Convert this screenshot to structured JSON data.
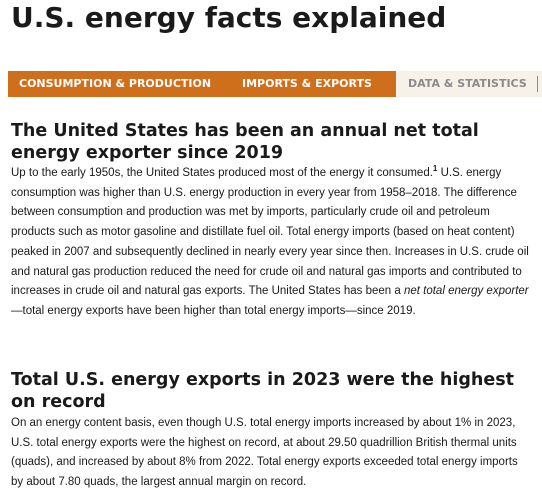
{
  "page": {
    "title": "U.S. energy facts explained"
  },
  "tabs": [
    {
      "label": "CONSUMPTION & PRODUCTION"
    },
    {
      "label": "IMPORTS & EXPORTS"
    },
    {
      "label": "DATA & STATISTICS"
    }
  ],
  "sections": [
    {
      "heading": "The United States has been an annual net total energy exporter since 2019",
      "text_before_footnote": "Up to the early 1950s, the United States produced most of the energy it consumed.",
      "footnote": "1",
      "text_after_footnote": " U.S. energy consumption was higher than U.S. energy production in every year from 1958–2018. The difference between consumption and production was met by imports, particularly crude oil and petroleum products such as motor gasoline and distillate fuel oil. Total energy imports (based on heat content) peaked in 2007 and subsequently declined in nearly every year since then. Increases in U.S. crude oil and natural gas production reduced the need for crude oil and natural gas imports and contributed to increases in crude oil and natural gas exports. The United States has been a ",
      "italic_term": "net total energy exporter",
      "text_end": "—total energy exports have been higher than total energy imports—since 2019."
    },
    {
      "heading": "Total U.S. energy exports in 2023 were the highest on record",
      "text": "On an energy content basis, even though U.S. total energy imports increased by about 1% in 2023, U.S. total energy exports were the highest on record, at about 29.50 quadrillion British thermal units (quads), and increased by about 8% from 2022. Total energy exports exceeded total energy imports by about 7.80 quads, the largest annual margin on record."
    }
  ]
}
